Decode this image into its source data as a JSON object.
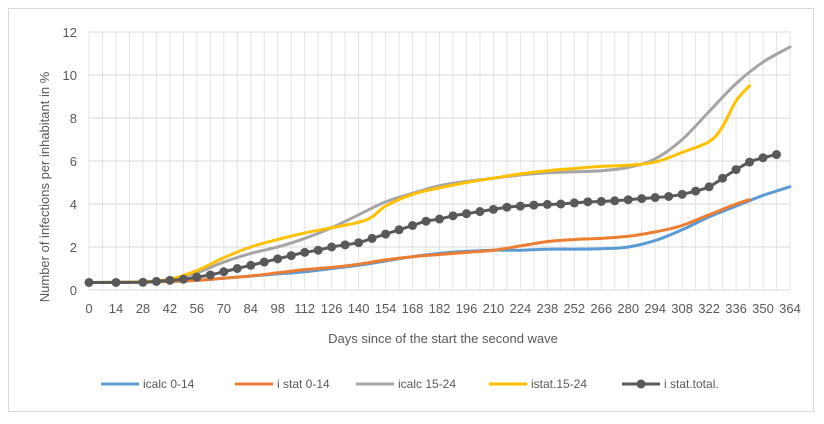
{
  "chart_data": {
    "type": "line",
    "title": "",
    "xlabel": "Days since of the start the second wave",
    "ylabel": "Number of infections per inhabitant in %",
    "ylim": [
      0,
      12
    ],
    "yticks": [
      "0",
      "2",
      "4",
      "6",
      "8",
      "10",
      "12"
    ],
    "xlim": [
      0,
      364
    ],
    "xticks": [
      "0",
      "14",
      "28",
      "42",
      "56",
      "70",
      "84",
      "98",
      "112",
      "126",
      "140",
      "154",
      "168",
      "182",
      "196",
      "210",
      "224",
      "238",
      "252",
      "266",
      "280",
      "294",
      "308",
      "322",
      "336",
      "350",
      "364"
    ],
    "grid": "vertical and horizontal",
    "legend_position": "bottom",
    "series": [
      {
        "name": "icalc 0-14",
        "color": "#5b9bd5",
        "markers": false,
        "points": [
          [
            0,
            0.35
          ],
          [
            14,
            0.36
          ],
          [
            28,
            0.38
          ],
          [
            42,
            0.4
          ],
          [
            56,
            0.45
          ],
          [
            70,
            0.55
          ],
          [
            84,
            0.65
          ],
          [
            98,
            0.75
          ],
          [
            112,
            0.85
          ],
          [
            126,
            1.0
          ],
          [
            140,
            1.15
          ],
          [
            154,
            1.35
          ],
          [
            168,
            1.55
          ],
          [
            182,
            1.7
          ],
          [
            196,
            1.8
          ],
          [
            210,
            1.85
          ],
          [
            224,
            1.85
          ],
          [
            238,
            1.9
          ],
          [
            252,
            1.9
          ],
          [
            266,
            1.92
          ],
          [
            280,
            2.0
          ],
          [
            294,
            2.3
          ],
          [
            308,
            2.8
          ],
          [
            322,
            3.4
          ],
          [
            336,
            3.9
          ],
          [
            350,
            4.4
          ],
          [
            364,
            4.8
          ]
        ]
      },
      {
        "name": "i stat 0-14",
        "color": "#ed7d31",
        "markers": false,
        "points": [
          [
            0,
            0.35
          ],
          [
            14,
            0.35
          ],
          [
            28,
            0.37
          ],
          [
            42,
            0.4
          ],
          [
            56,
            0.45
          ],
          [
            70,
            0.55
          ],
          [
            84,
            0.65
          ],
          [
            98,
            0.8
          ],
          [
            112,
            0.95
          ],
          [
            126,
            1.05
          ],
          [
            140,
            1.2
          ],
          [
            154,
            1.4
          ],
          [
            168,
            1.55
          ],
          [
            182,
            1.65
          ],
          [
            196,
            1.75
          ],
          [
            210,
            1.85
          ],
          [
            224,
            2.05
          ],
          [
            238,
            2.25
          ],
          [
            252,
            2.35
          ],
          [
            266,
            2.4
          ],
          [
            280,
            2.5
          ],
          [
            294,
            2.7
          ],
          [
            308,
            3.0
          ],
          [
            322,
            3.5
          ],
          [
            336,
            4.0
          ],
          [
            343,
            4.2
          ]
        ]
      },
      {
        "name": "icalc 15-24",
        "color": "#a5a5a5",
        "markers": false,
        "points": [
          [
            0,
            0.35
          ],
          [
            14,
            0.36
          ],
          [
            28,
            0.38
          ],
          [
            42,
            0.5
          ],
          [
            56,
            0.8
          ],
          [
            70,
            1.3
          ],
          [
            84,
            1.7
          ],
          [
            98,
            2.0
          ],
          [
            112,
            2.4
          ],
          [
            126,
            2.9
          ],
          [
            140,
            3.5
          ],
          [
            154,
            4.1
          ],
          [
            168,
            4.5
          ],
          [
            182,
            4.85
          ],
          [
            196,
            5.05
          ],
          [
            210,
            5.2
          ],
          [
            224,
            5.35
          ],
          [
            238,
            5.45
          ],
          [
            252,
            5.5
          ],
          [
            266,
            5.55
          ],
          [
            280,
            5.7
          ],
          [
            294,
            6.1
          ],
          [
            308,
            7.0
          ],
          [
            322,
            8.3
          ],
          [
            336,
            9.6
          ],
          [
            350,
            10.6
          ],
          [
            364,
            11.3
          ]
        ]
      },
      {
        "name": "istat.15-24",
        "color": "#ffc000",
        "markers": false,
        "points": [
          [
            0,
            0.35
          ],
          [
            14,
            0.36
          ],
          [
            28,
            0.38
          ],
          [
            42,
            0.5
          ],
          [
            56,
            0.9
          ],
          [
            70,
            1.5
          ],
          [
            84,
            2.0
          ],
          [
            98,
            2.35
          ],
          [
            112,
            2.65
          ],
          [
            126,
            2.9
          ],
          [
            140,
            3.15
          ],
          [
            147,
            3.4
          ],
          [
            154,
            3.9
          ],
          [
            168,
            4.45
          ],
          [
            182,
            4.75
          ],
          [
            196,
            5.0
          ],
          [
            210,
            5.2
          ],
          [
            224,
            5.4
          ],
          [
            238,
            5.55
          ],
          [
            252,
            5.65
          ],
          [
            266,
            5.75
          ],
          [
            280,
            5.8
          ],
          [
            294,
            5.95
          ],
          [
            308,
            6.4
          ],
          [
            322,
            6.9
          ],
          [
            329,
            7.6
          ],
          [
            336,
            8.8
          ],
          [
            343,
            9.5
          ]
        ]
      },
      {
        "name": "i stat.total.",
        "color": "#595959",
        "markers": true,
        "points": [
          [
            0,
            0.35
          ],
          [
            14,
            0.35
          ],
          [
            28,
            0.36
          ],
          [
            35,
            0.4
          ],
          [
            42,
            0.45
          ],
          [
            49,
            0.5
          ],
          [
            56,
            0.6
          ],
          [
            63,
            0.7
          ],
          [
            70,
            0.85
          ],
          [
            77,
            1.0
          ],
          [
            84,
            1.15
          ],
          [
            91,
            1.3
          ],
          [
            98,
            1.45
          ],
          [
            105,
            1.6
          ],
          [
            112,
            1.75
          ],
          [
            119,
            1.85
          ],
          [
            126,
            2.0
          ],
          [
            133,
            2.1
          ],
          [
            140,
            2.2
          ],
          [
            147,
            2.4
          ],
          [
            154,
            2.6
          ],
          [
            161,
            2.8
          ],
          [
            168,
            3.0
          ],
          [
            175,
            3.2
          ],
          [
            182,
            3.3
          ],
          [
            189,
            3.45
          ],
          [
            196,
            3.55
          ],
          [
            203,
            3.65
          ],
          [
            210,
            3.75
          ],
          [
            217,
            3.85
          ],
          [
            224,
            3.9
          ],
          [
            231,
            3.95
          ],
          [
            238,
            3.98
          ],
          [
            245,
            4.0
          ],
          [
            252,
            4.05
          ],
          [
            259,
            4.1
          ],
          [
            266,
            4.12
          ],
          [
            273,
            4.15
          ],
          [
            280,
            4.2
          ],
          [
            287,
            4.25
          ],
          [
            294,
            4.3
          ],
          [
            301,
            4.35
          ],
          [
            308,
            4.45
          ],
          [
            315,
            4.6
          ],
          [
            322,
            4.8
          ],
          [
            329,
            5.2
          ],
          [
            336,
            5.6
          ],
          [
            343,
            5.95
          ],
          [
            350,
            6.15
          ],
          [
            357,
            6.3
          ]
        ]
      }
    ]
  }
}
